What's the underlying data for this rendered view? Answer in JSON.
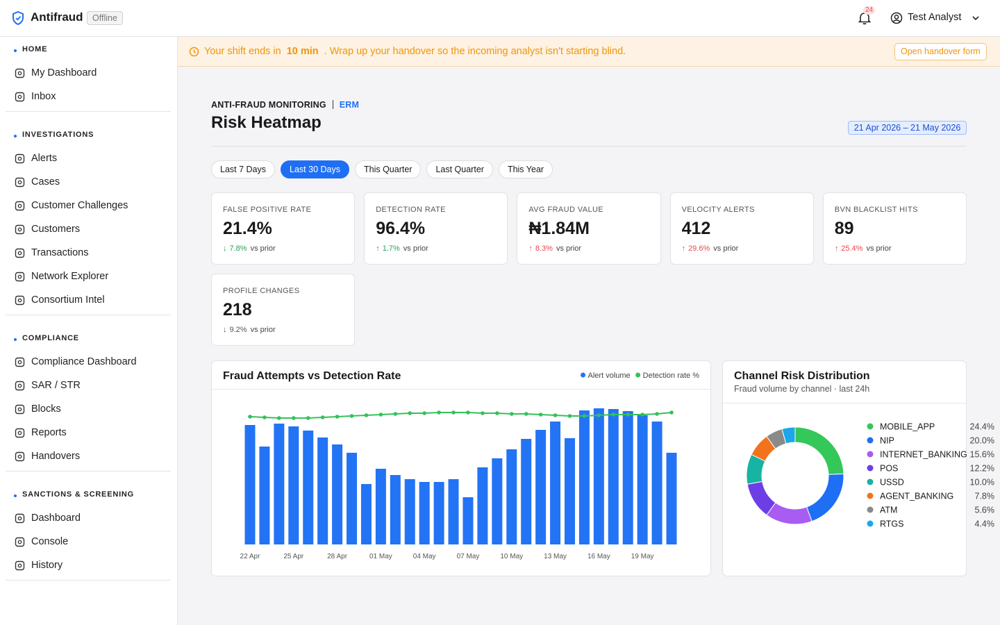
{
  "header": {
    "brand": "Antifraud",
    "status": "Offline",
    "notifications": "24",
    "user": "Test Analyst"
  },
  "sidebar": [
    {
      "title": "HOME",
      "items": [
        "My Dashboard",
        "Inbox"
      ]
    },
    {
      "title": "INVESTIGATIONS",
      "items": [
        "Alerts",
        "Cases",
        "Customer Challenges",
        "Customers",
        "Transactions",
        "Network Explorer",
        "Consortium Intel"
      ]
    },
    {
      "title": "COMPLIANCE",
      "items": [
        "Compliance Dashboard",
        "SAR / STR",
        "Blocks",
        "Reports",
        "Handovers"
      ]
    },
    {
      "title": "SANCTIONS & SCREENING",
      "items": [
        "Dashboard",
        "Console",
        "History"
      ]
    }
  ],
  "banner": {
    "before": "Your shift ends in",
    "highlight": "10 min",
    "after": ". Wrap up your handover so the incoming analyst isn't starting blind.",
    "button": "Open handover form"
  },
  "page": {
    "eyebrow": "ANTI-FRAUD MONITORING",
    "tag": "ERM",
    "title": "Risk Heatmap",
    "date_range": "21 Apr 2026 – 21 May 2026"
  },
  "filters": {
    "options": [
      "Last 7 Days",
      "Last 30 Days",
      "This Quarter",
      "Last Quarter",
      "This Year"
    ],
    "active": 1
  },
  "kpis": [
    {
      "label": "FALSE POSITIVE RATE",
      "value": "21.4%",
      "arrow": "↓",
      "change": "7.8%",
      "note": "vs prior",
      "color": "#22a356"
    },
    {
      "label": "DETECTION RATE",
      "value": "96.4%",
      "arrow": "↑",
      "change": "1.7%",
      "note": "vs prior",
      "color": "#22a356"
    },
    {
      "label": "AVG FRAUD VALUE",
      "value": "₦1.84M",
      "arrow": "↑",
      "change": "8.3%",
      "note": "vs prior",
      "color": "#e5484d"
    },
    {
      "label": "VELOCITY ALERTS",
      "value": "412",
      "arrow": "↑",
      "change": "29.6%",
      "note": "vs prior",
      "color": "#e5484d"
    },
    {
      "label": "BVN BLACKLIST HITS",
      "value": "89",
      "arrow": "↑",
      "change": "25.4%",
      "note": "vs prior",
      "color": "#e5484d"
    },
    {
      "label": "PROFILE CHANGES",
      "value": "218",
      "arrow": "↓",
      "change": "9.2%",
      "note": "vs prior",
      "color": "#555555"
    }
  ],
  "chart_data": [
    {
      "type": "combo",
      "title": "Fraud Attempts vs Detection Rate",
      "categories": [
        "22 Apr",
        null,
        null,
        "25 Apr",
        null,
        null,
        "28 Apr",
        null,
        null,
        "01 May",
        null,
        null,
        "04 May",
        null,
        null,
        "07 May",
        null,
        null,
        "10 May",
        null,
        null,
        "13 May",
        null,
        null,
        "16 May",
        null,
        null,
        "19 May",
        null,
        null
      ],
      "series": [
        {
          "name": "Alert volume",
          "color": "#2373f5",
          "kind": "bar",
          "values": [
            172,
            141,
            174,
            170,
            164,
            154,
            144,
            132,
            87,
            109,
            100,
            94,
            90,
            90,
            94,
            68,
            111,
            124,
            137,
            152,
            165,
            177,
            153,
            193,
            196,
            195,
            192,
            186,
            177,
            132
          ]
        },
        {
          "name": "Detection rate %",
          "color": "#34c15a",
          "kind": "line",
          "axis": "y2",
          "values": [
            92,
            91.5,
            91,
            91,
            91,
            91.5,
            92,
            92.5,
            93,
            93.5,
            94,
            94.5,
            94.5,
            95,
            95,
            95,
            94.5,
            94.5,
            94,
            94,
            93.5,
            93,
            92.5,
            92.5,
            93,
            93.5,
            93.5,
            93.5,
            94,
            95
          ]
        }
      ],
      "ylim": [
        0,
        200
      ],
      "y2lim": [
        0,
        100
      ],
      "legend": "top-right"
    },
    {
      "type": "donut",
      "title": "Channel Risk Distribution",
      "subtitle": "Fraud volume by channel · last 24h",
      "categories": [
        "MOBILE_APP",
        "NIP",
        "INTERNET_BANKING",
        "POS",
        "USSD",
        "AGENT_BANKING",
        "ATM",
        "RTGS"
      ],
      "values": [
        24.4,
        20.0,
        15.6,
        12.2,
        10.0,
        7.8,
        5.6,
        4.4
      ],
      "value_labels": [
        "24.4%",
        "20.0%",
        "15.6%",
        "12.2%",
        "10.0%",
        "7.8%",
        "5.6%",
        "4.4%"
      ],
      "colors": [
        "#34c759",
        "#1f6ff5",
        "#a85cf2",
        "#6d3ee6",
        "#17b3a3",
        "#f2731c",
        "#8a8a8a",
        "#1ea7e8"
      ],
      "legend": "right"
    }
  ]
}
